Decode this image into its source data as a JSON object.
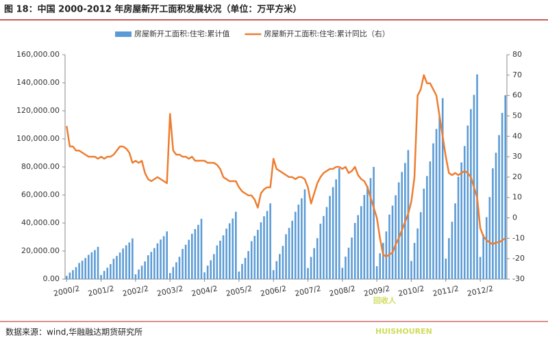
{
  "chart_data": {
    "type": "combo",
    "title": "图 18：中国 2000-2012 年房屋新开工面积发展状况（单位：万平方米）",
    "source": "数据来源：wind,华融融达期货研究所",
    "watermark": [
      "回收人",
      "HUISHOUREN"
    ],
    "categories": [
      "2000/2",
      null,
      null,
      null,
      null,
      null,
      null,
      null,
      null,
      null,
      null,
      "2001/2",
      null,
      null,
      null,
      null,
      null,
      null,
      null,
      null,
      null,
      null,
      "2002/2",
      null,
      null,
      null,
      null,
      null,
      null,
      null,
      null,
      null,
      null,
      "2003/2",
      null,
      null,
      null,
      null,
      null,
      null,
      null,
      null,
      null,
      null,
      "2004/2",
      null,
      null,
      null,
      null,
      null,
      null,
      null,
      null,
      null,
      null,
      "2005/2",
      null,
      null,
      null,
      null,
      null,
      null,
      null,
      null,
      null,
      null,
      "2006/2",
      null,
      null,
      null,
      null,
      null,
      null,
      null,
      null,
      null,
      null,
      "2007/2",
      null,
      null,
      null,
      null,
      null,
      null,
      null,
      null,
      null,
      null,
      "2008/2",
      null,
      null,
      null,
      null,
      null,
      null,
      null,
      null,
      null,
      null,
      "2009/2",
      null,
      null,
      null,
      null,
      null,
      null,
      null,
      null,
      null,
      null,
      "2010/2",
      null,
      null,
      null,
      null,
      null,
      null,
      null,
      null,
      null,
      null,
      "2011/2",
      null,
      null,
      null,
      null,
      null,
      null,
      null,
      null,
      null,
      null,
      "2012/2",
      null,
      null,
      null,
      null,
      null,
      null,
      null,
      null
    ],
    "series": [
      {
        "name": "房屋新开工面积:住宅:累计值",
        "type": "bar",
        "color": "#5b9bd5",
        "values": [
          2300,
          4600,
          6400,
          8500,
          11500,
          13100,
          15000,
          17300,
          19100,
          20700,
          23000,
          2900,
          5800,
          8100,
          10700,
          14500,
          16500,
          18900,
          21800,
          24100,
          26100,
          29000,
          3400,
          6800,
          9500,
          12600,
          17000,
          19400,
          22100,
          25500,
          28200,
          30600,
          34000,
          4300,
          8600,
          12000,
          15900,
          21500,
          24500,
          28000,
          32300,
          35700,
          38700,
          43000,
          4800,
          9600,
          13400,
          17800,
          24000,
          27400,
          31200,
          36000,
          39800,
          43200,
          48000,
          5400,
          10800,
          15100,
          20000,
          27000,
          30800,
          35100,
          40500,
          44800,
          48600,
          54000,
          6400,
          12800,
          17900,
          23700,
          32000,
          36500,
          41600,
          48000,
          53100,
          57600,
          64000,
          7900,
          15800,
          22100,
          29200,
          39500,
          45000,
          51400,
          59300,
          65600,
          71100,
          79000,
          8000,
          16000,
          22400,
          29600,
          40000,
          45600,
          52000,
          60000,
          66400,
          72000,
          80000,
          9200,
          18400,
          25800,
          34000,
          46000,
          52400,
          59800,
          69000,
          76400,
          82800,
          92000,
          12900,
          25800,
          36100,
          47700,
          64500,
          73500,
          83900,
          96800,
          107100,
          116100,
          129000,
          14600,
          29200,
          40900,
          54000,
          73000,
          83200,
          94900,
          109500,
          121200,
          131400,
          146000,
          15800,
          31600,
          44200,
          58500,
          79000,
          90100,
          102700,
          118500,
          131100
        ]
      },
      {
        "name": "房屋新开工面积:住宅:累计同比（右）",
        "type": "line",
        "axis": "y2",
        "color": "#ed7d31",
        "values": [
          45,
          35,
          35,
          33,
          33,
          32,
          31,
          30,
          30,
          30,
          29,
          30,
          29,
          30,
          30,
          31,
          33,
          35,
          35,
          34,
          32,
          27,
          28,
          27,
          28,
          22,
          19,
          18,
          19,
          20,
          19,
          18,
          17,
          51,
          33,
          31,
          31,
          30,
          30,
          29,
          30,
          28,
          28,
          28,
          28,
          27,
          27,
          27,
          26,
          24,
          20,
          19,
          18,
          18,
          18,
          15,
          13,
          12,
          11,
          11,
          9,
          5,
          12,
          14,
          15,
          15,
          29,
          24,
          23,
          22,
          21,
          20,
          20,
          19,
          20,
          20,
          19,
          15,
          7,
          12,
          17,
          20,
          22,
          23,
          24,
          24,
          25,
          25,
          24,
          25,
          22,
          23,
          25,
          21,
          19,
          18,
          15,
          10,
          5,
          0,
          -10,
          -18,
          -19,
          -18,
          -17,
          -13,
          -10,
          -6,
          -2,
          2,
          8,
          20,
          60,
          63,
          70,
          66,
          66,
          63,
          60,
          50,
          40,
          30,
          22,
          21,
          22,
          21,
          22,
          23,
          22,
          20,
          15,
          10,
          -5,
          -9,
          -11,
          -12,
          -13,
          -12,
          -12,
          -11,
          -10
        ]
      }
    ],
    "ylim": [
      0,
      160000
    ],
    "yticks": [
      {
        "value": 0,
        "label": "0.00"
      },
      {
        "value": 20000,
        "label": "20,000.00"
      },
      {
        "value": 40000,
        "label": "40,000.00"
      },
      {
        "value": 60000,
        "label": "60,000.00"
      },
      {
        "value": 80000,
        "label": "80,000.00"
      },
      {
        "value": 100000,
        "label": "100,000.00"
      },
      {
        "value": 120000,
        "label": "120,000.00"
      },
      {
        "value": 140000,
        "label": "140,000.00"
      },
      {
        "value": 160000,
        "label": "160,000.00"
      }
    ],
    "y2lim": [
      -30,
      80
    ],
    "y2ticks": [
      -30,
      -20,
      -10,
      0,
      10,
      20,
      30,
      40,
      50,
      60,
      70,
      80
    ],
    "legend": "top"
  }
}
